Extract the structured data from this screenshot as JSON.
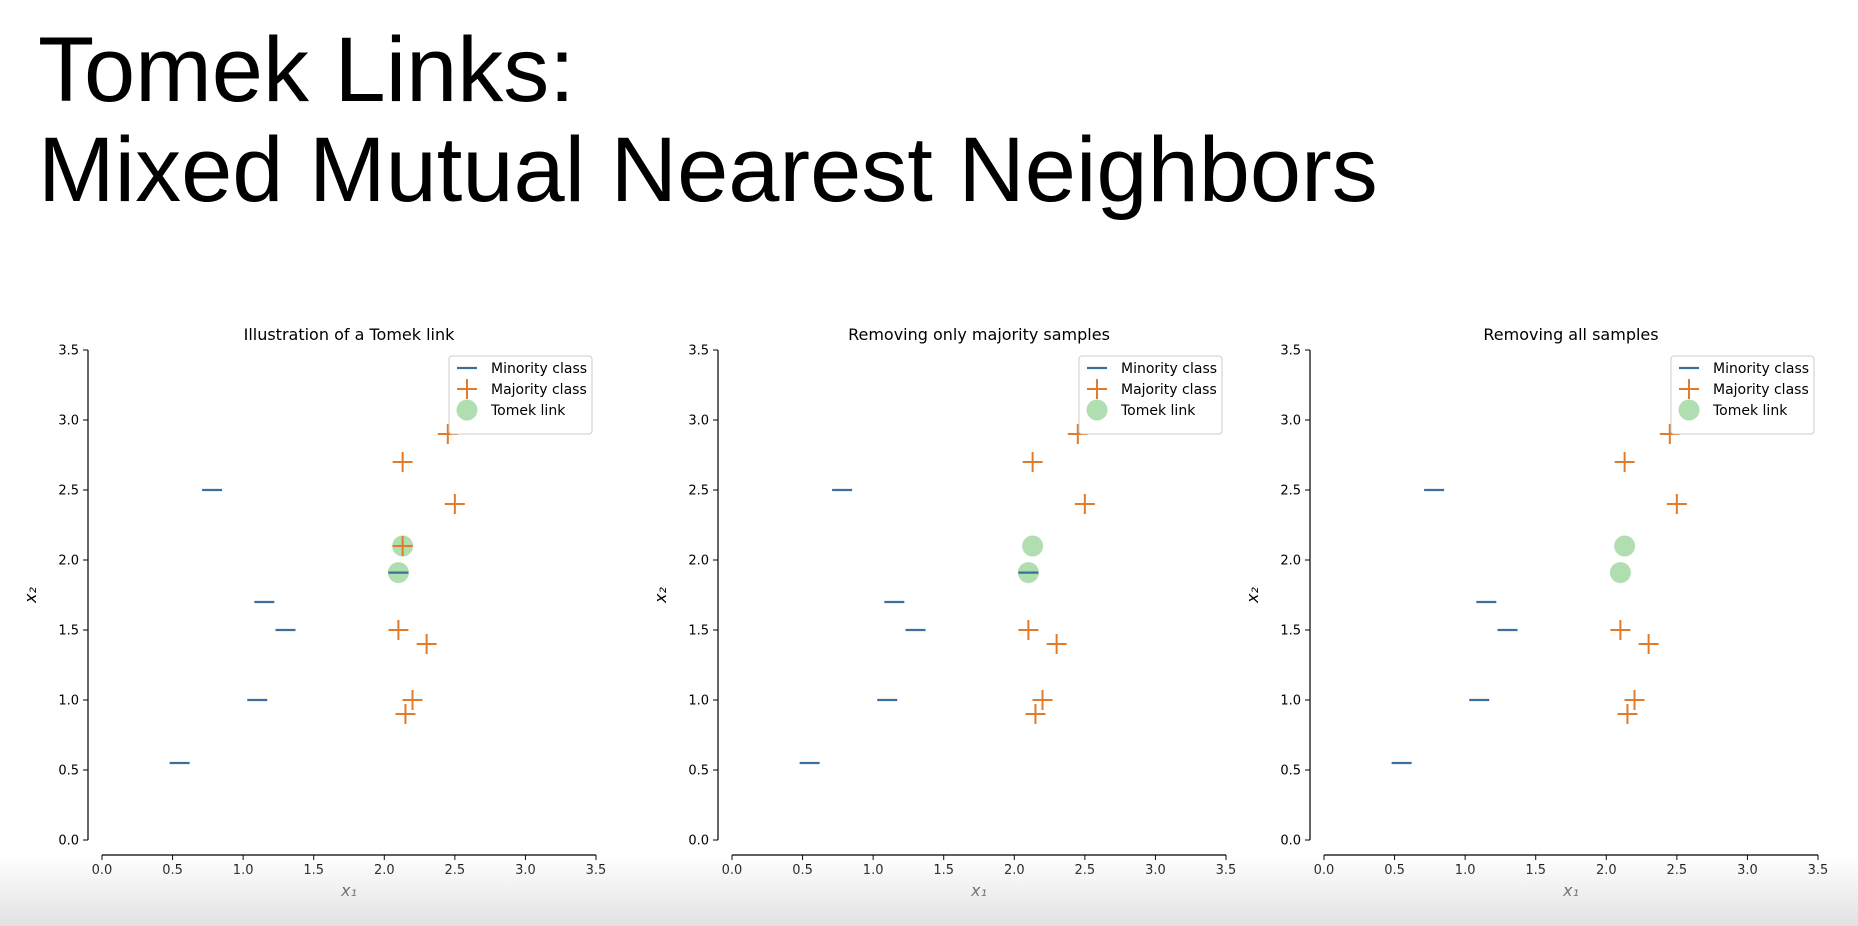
{
  "slide": {
    "title_line1": "Tomek Links:",
    "title_line2": "Mixed Mutual Nearest Neighbors"
  },
  "colors": {
    "minority": "#3a6f9e",
    "majority": "#e07b2c",
    "tomek": "#8fd08f",
    "axis": "#000000"
  },
  "chart_data": [
    {
      "type": "scatter",
      "title": "Illustration of a Tomek link",
      "xlabel": "x₁",
      "ylabel": "x₂",
      "xlim": [
        0,
        3.5
      ],
      "ylim": [
        0,
        3.5
      ],
      "xticks": [
        "0.0",
        "0.5",
        "1.0",
        "1.5",
        "2.0",
        "2.5",
        "3.0",
        "3.5"
      ],
      "yticks": [
        "0.0",
        "0.5",
        "1.0",
        "1.5",
        "2.0",
        "2.5",
        "3.0",
        "3.5"
      ],
      "grid": false,
      "legend_position": "top-right",
      "legend": [
        "Minority class",
        "Majority class",
        "Tomek link"
      ],
      "series": [
        {
          "name": "Minority class",
          "marker": "minus",
          "points": [
            [
              0.78,
              2.5
            ],
            [
              1.15,
              1.7
            ],
            [
              1.3,
              1.5
            ],
            [
              1.1,
              1.0
            ],
            [
              0.55,
              0.55
            ],
            [
              2.1,
              1.91
            ]
          ]
        },
        {
          "name": "Majority class",
          "marker": "plus",
          "points": [
            [
              2.13,
              2.7
            ],
            [
              2.45,
              2.9
            ],
            [
              2.5,
              2.4
            ],
            [
              2.13,
              2.1
            ],
            [
              2.1,
              1.5
            ],
            [
              2.3,
              1.4
            ],
            [
              2.2,
              1.0
            ],
            [
              2.15,
              0.9
            ]
          ]
        },
        {
          "name": "Tomek link",
          "marker": "circle",
          "points": [
            [
              2.13,
              2.1
            ],
            [
              2.1,
              1.91
            ]
          ]
        }
      ]
    },
    {
      "type": "scatter",
      "title": "Removing only majority samples",
      "xlabel": "x₁",
      "ylabel": "x₂",
      "xlim": [
        0,
        3.5
      ],
      "ylim": [
        0,
        3.5
      ],
      "xticks": [
        "0.0",
        "0.5",
        "1.0",
        "1.5",
        "2.0",
        "2.5",
        "3.0",
        "3.5"
      ],
      "yticks": [
        "0.0",
        "0.5",
        "1.0",
        "1.5",
        "2.0",
        "2.5",
        "3.0",
        "3.5"
      ],
      "grid": false,
      "legend_position": "top-right",
      "legend": [
        "Minority class",
        "Majority class",
        "Tomek link"
      ],
      "series": [
        {
          "name": "Minority class",
          "marker": "minus",
          "points": [
            [
              0.78,
              2.5
            ],
            [
              1.15,
              1.7
            ],
            [
              1.3,
              1.5
            ],
            [
              1.1,
              1.0
            ],
            [
              0.55,
              0.55
            ],
            [
              2.1,
              1.91
            ]
          ]
        },
        {
          "name": "Majority class",
          "marker": "plus",
          "points": [
            [
              2.13,
              2.7
            ],
            [
              2.45,
              2.9
            ],
            [
              2.5,
              2.4
            ],
            [
              2.1,
              1.5
            ],
            [
              2.3,
              1.4
            ],
            [
              2.2,
              1.0
            ],
            [
              2.15,
              0.9
            ]
          ]
        },
        {
          "name": "Tomek link",
          "marker": "circle",
          "points": [
            [
              2.13,
              2.1
            ],
            [
              2.1,
              1.91
            ]
          ]
        }
      ]
    },
    {
      "type": "scatter",
      "title": "Removing all samples",
      "xlabel": "x₁",
      "ylabel": "x₂",
      "xlim": [
        0,
        3.5
      ],
      "ylim": [
        0,
        3.5
      ],
      "xticks": [
        "0.0",
        "0.5",
        "1.0",
        "1.5",
        "2.0",
        "2.5",
        "3.0",
        "3.5"
      ],
      "yticks": [
        "0.0",
        "0.5",
        "1.0",
        "1.5",
        "2.0",
        "2.5",
        "3.0",
        "3.5"
      ],
      "grid": false,
      "legend_position": "top-right",
      "legend": [
        "Minority class",
        "Majority class",
        "Tomek link"
      ],
      "series": [
        {
          "name": "Minority class",
          "marker": "minus",
          "points": [
            [
              0.78,
              2.5
            ],
            [
              1.15,
              1.7
            ],
            [
              1.3,
              1.5
            ],
            [
              1.1,
              1.0
            ],
            [
              0.55,
              0.55
            ]
          ]
        },
        {
          "name": "Majority class",
          "marker": "plus",
          "points": [
            [
              2.13,
              2.7
            ],
            [
              2.45,
              2.9
            ],
            [
              2.5,
              2.4
            ],
            [
              2.1,
              1.5
            ],
            [
              2.3,
              1.4
            ],
            [
              2.2,
              1.0
            ],
            [
              2.15,
              0.9
            ]
          ]
        },
        {
          "name": "Tomek link",
          "marker": "circle",
          "points": [
            [
              2.13,
              2.1
            ],
            [
              2.1,
              1.91
            ]
          ]
        }
      ]
    }
  ]
}
